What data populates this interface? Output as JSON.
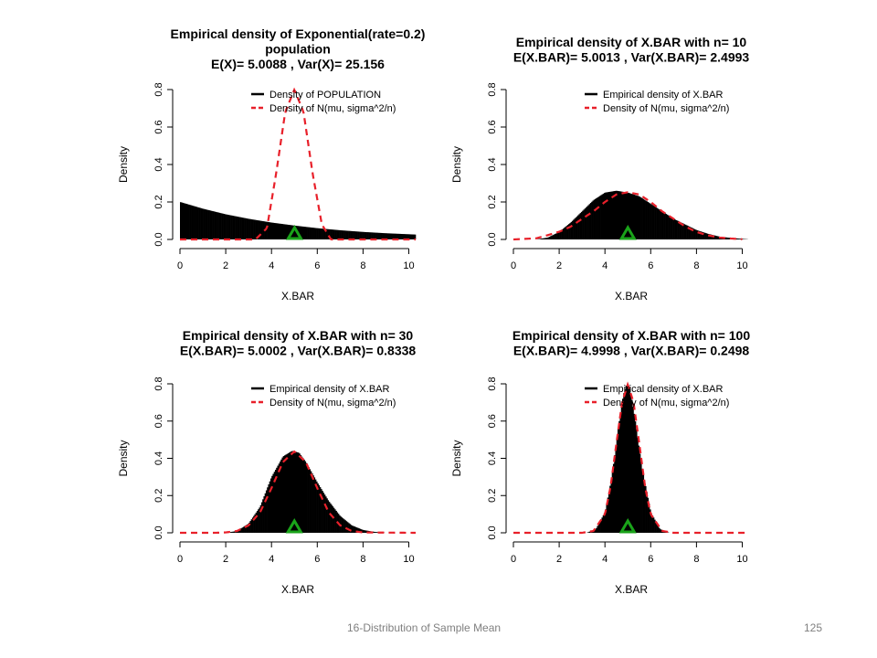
{
  "footer": {
    "title": "16-Distribution of Sample Mean",
    "page": "125"
  },
  "colors": {
    "histogram": "#000000",
    "normal_curve": "#e8202a",
    "mean_marker": "#1aa31a"
  },
  "chart_data": [
    {
      "type": "area",
      "title_lines": [
        "Empirical density of Exponential(rate=0.2)",
        "population",
        "E(X)= 5.0088 , Var(X)= 25.156"
      ],
      "xlabel": "X.BAR",
      "ylabel": "Density",
      "xlim": [
        0,
        10.3
      ],
      "ylim": [
        0,
        0.8
      ],
      "xticks": [
        "0",
        "2",
        "4",
        "6",
        "8",
        "10"
      ],
      "yticks": [
        "0.0",
        "0.2",
        "0.4",
        "0.6",
        "0.8"
      ],
      "legend": {
        "position": "top-right",
        "entries": [
          "Density of POPULATION",
          "Density of N(mu, sigma^2/n)"
        ]
      },
      "empirical": {
        "x": [
          0,
          1,
          2,
          3,
          4,
          5,
          6,
          7,
          8,
          9,
          10.3
        ],
        "y": [
          0.2,
          0.164,
          0.134,
          0.11,
          0.09,
          0.074,
          0.06,
          0.049,
          0.04,
          0.033,
          0.026
        ]
      },
      "normal": {
        "x": [
          0,
          3.3,
          3.8,
          4.2,
          4.6,
          5.0,
          5.4,
          5.8,
          6.2,
          6.6,
          10.3
        ],
        "y": [
          0,
          0,
          0.06,
          0.35,
          0.68,
          0.8,
          0.68,
          0.35,
          0.08,
          0,
          0
        ]
      },
      "mean_marker": 5.0088
    },
    {
      "type": "area",
      "title_lines": [
        "Empirical density of X.BAR with n= 10",
        "E(X.BAR)= 5.0013 , Var(X.BAR)= 2.4993"
      ],
      "xlabel": "X.BAR",
      "ylabel": "Density",
      "xlim": [
        0,
        10.3
      ],
      "ylim": [
        0,
        0.8
      ],
      "xticks": [
        "0",
        "2",
        "4",
        "6",
        "8",
        "10"
      ],
      "yticks": [
        "0.0",
        "0.2",
        "0.4",
        "0.6",
        "0.8"
      ],
      "legend": {
        "position": "top-right",
        "entries": [
          "Empirical density of X.BAR",
          "Density of N(mu, sigma^2/n)"
        ]
      },
      "empirical": {
        "x": [
          1,
          1.5,
          2,
          2.5,
          3,
          3.5,
          4,
          4.5,
          5,
          5.5,
          6,
          6.5,
          7,
          7.5,
          8,
          8.5,
          9,
          9.5,
          10,
          10.3
        ],
        "y": [
          0,
          0.01,
          0.04,
          0.09,
          0.15,
          0.21,
          0.25,
          0.26,
          0.25,
          0.23,
          0.19,
          0.15,
          0.11,
          0.08,
          0.05,
          0.03,
          0.015,
          0.008,
          0.003,
          0
        ]
      },
      "normal": {
        "x": [
          0,
          1,
          1.5,
          2,
          2.5,
          3,
          3.5,
          4,
          4.5,
          5,
          5.5,
          6,
          6.5,
          7,
          7.5,
          8,
          8.5,
          9,
          9.5,
          10
        ],
        "y": [
          0,
          0.006,
          0.023,
          0.041,
          0.068,
          0.11,
          0.15,
          0.2,
          0.24,
          0.252,
          0.24,
          0.2,
          0.15,
          0.11,
          0.07,
          0.04,
          0.022,
          0.01,
          0.005,
          0.001
        ]
      },
      "mean_marker": 5.0013
    },
    {
      "type": "area",
      "title_lines": [
        "Empirical density of X.BAR with n= 30",
        "E(X.BAR)= 5.0002 , Var(X.BAR)= 0.8338"
      ],
      "xlabel": "X.BAR",
      "ylabel": "Density",
      "xlim": [
        0,
        10.3
      ],
      "ylim": [
        0,
        0.8
      ],
      "xticks": [
        "0",
        "2",
        "4",
        "6",
        "8",
        "10"
      ],
      "yticks": [
        "0.0",
        "0.2",
        "0.4",
        "0.6",
        "0.8"
      ],
      "legend": {
        "position": "top-right",
        "entries": [
          "Empirical density of X.BAR",
          "Density of N(mu, sigma^2/n)"
        ]
      },
      "empirical": {
        "x": [
          2,
          2.5,
          3,
          3.5,
          4,
          4.5,
          4.9,
          5.2,
          5.5,
          6,
          6.5,
          7,
          7.5,
          8,
          8.5,
          9
        ],
        "y": [
          0,
          0.01,
          0.05,
          0.14,
          0.3,
          0.41,
          0.44,
          0.43,
          0.38,
          0.27,
          0.17,
          0.09,
          0.04,
          0.015,
          0.005,
          0
        ]
      },
      "normal": {
        "x": [
          0,
          1.5,
          2,
          2.5,
          3,
          3.5,
          4,
          4.5,
          5,
          5.5,
          6,
          6.5,
          7,
          7.5,
          8,
          10.3
        ],
        "y": [
          0,
          0,
          0.002,
          0.01,
          0.04,
          0.11,
          0.24,
          0.38,
          0.437,
          0.38,
          0.24,
          0.11,
          0.04,
          0.01,
          0.002,
          0
        ]
      },
      "mean_marker": 5.0002
    },
    {
      "type": "area",
      "title_lines": [
        "Empirical density of X.BAR with n= 100",
        "E(X.BAR)= 4.9998 , Var(X.BAR)= 0.2498"
      ],
      "xlabel": "X.BAR",
      "ylabel": "Density",
      "xlim": [
        0,
        10.3
      ],
      "ylim": [
        0,
        0.8
      ],
      "xticks": [
        "0",
        "2",
        "4",
        "6",
        "8",
        "10"
      ],
      "yticks": [
        "0.0",
        "0.2",
        "0.4",
        "0.6",
        "0.8"
      ],
      "legend": {
        "position": "top-right",
        "entries": [
          "Empirical density of X.BAR",
          "Density of N(mu, sigma^2/n)"
        ]
      },
      "empirical": {
        "x": [
          3.2,
          3.6,
          4,
          4.3,
          4.6,
          4.8,
          4.95,
          5.1,
          5.3,
          5.6,
          6,
          6.4,
          6.8
        ],
        "y": [
          0,
          0.02,
          0.11,
          0.3,
          0.58,
          0.74,
          0.8,
          0.77,
          0.62,
          0.36,
          0.11,
          0.02,
          0
        ]
      },
      "normal": {
        "x": [
          0,
          3,
          3.5,
          4,
          4.25,
          4.5,
          4.75,
          5,
          5.25,
          5.5,
          5.75,
          6,
          6.5,
          7,
          10.3
        ],
        "y": [
          0,
          0,
          0.01,
          0.1,
          0.25,
          0.48,
          0.7,
          0.798,
          0.7,
          0.48,
          0.25,
          0.1,
          0.01,
          0,
          0
        ]
      },
      "mean_marker": 4.9998
    }
  ]
}
